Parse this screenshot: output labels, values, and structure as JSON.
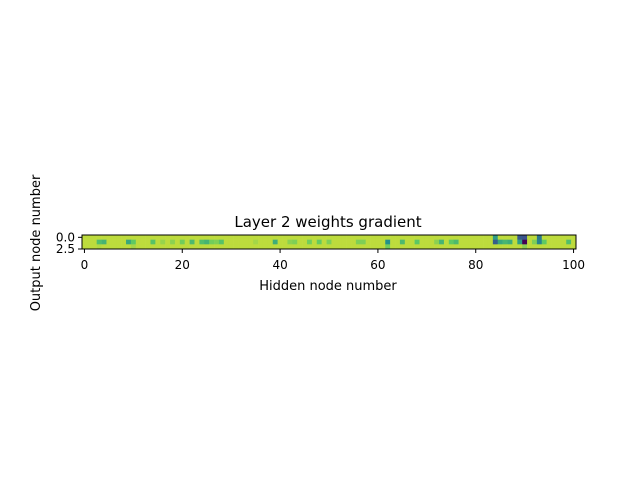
{
  "chart_data": {
    "type": "heatmap",
    "title": "Layer 2 weights gradient",
    "xlabel": "Hidden node number",
    "ylabel": "Output node number",
    "colormap": "viridis",
    "rows": 3,
    "cols": 101,
    "xlim": [
      -0.5,
      100.5
    ],
    "ylim": [
      2.5,
      -0.5
    ],
    "xticks": [
      0,
      20,
      40,
      60,
      80,
      100
    ],
    "xtick_labels": [
      "0",
      "20",
      "40",
      "60",
      "80",
      "100"
    ],
    "yticks": [
      0.0,
      2.5
    ],
    "ytick_labels": [
      "0.0",
      "2.5"
    ],
    "base_value": 0.9,
    "row_values": [
      {
        "row": 0,
        "nonzero": {
          "84": 0.55,
          "89": 0.28,
          "90": 0.25,
          "93": 0.4
        }
      },
      {
        "row": 1,
        "nonzero": {
          "3": 0.7,
          "4": 0.65,
          "9": 0.6,
          "10": 0.75,
          "14": 0.72,
          "16": 0.84,
          "18": 0.82,
          "20": 0.78,
          "22": 0.68,
          "24": 0.7,
          "25": 0.65,
          "26": 0.78,
          "27": 0.8,
          "28": 0.72,
          "35": 0.86,
          "39": 0.62,
          "42": 0.82,
          "43": 0.8,
          "46": 0.78,
          "48": 0.76,
          "50": 0.8,
          "56": 0.8,
          "57": 0.8,
          "62": 0.5,
          "65": 0.68,
          "68": 0.74,
          "72": 0.82,
          "73": 0.65,
          "75": 0.75,
          "76": 0.68,
          "84": 0.3,
          "85": 0.6,
          "86": 0.66,
          "87": 0.62,
          "89": 0.55,
          "90": 0.0,
          "92": 0.8,
          "93": 0.45,
          "94": 0.75,
          "99": 0.7
        }
      },
      {
        "row": 2,
        "nonzero": {
          "3": 0.88,
          "10": 0.86,
          "62": 0.78,
          "90": 0.82
        }
      }
    ]
  }
}
